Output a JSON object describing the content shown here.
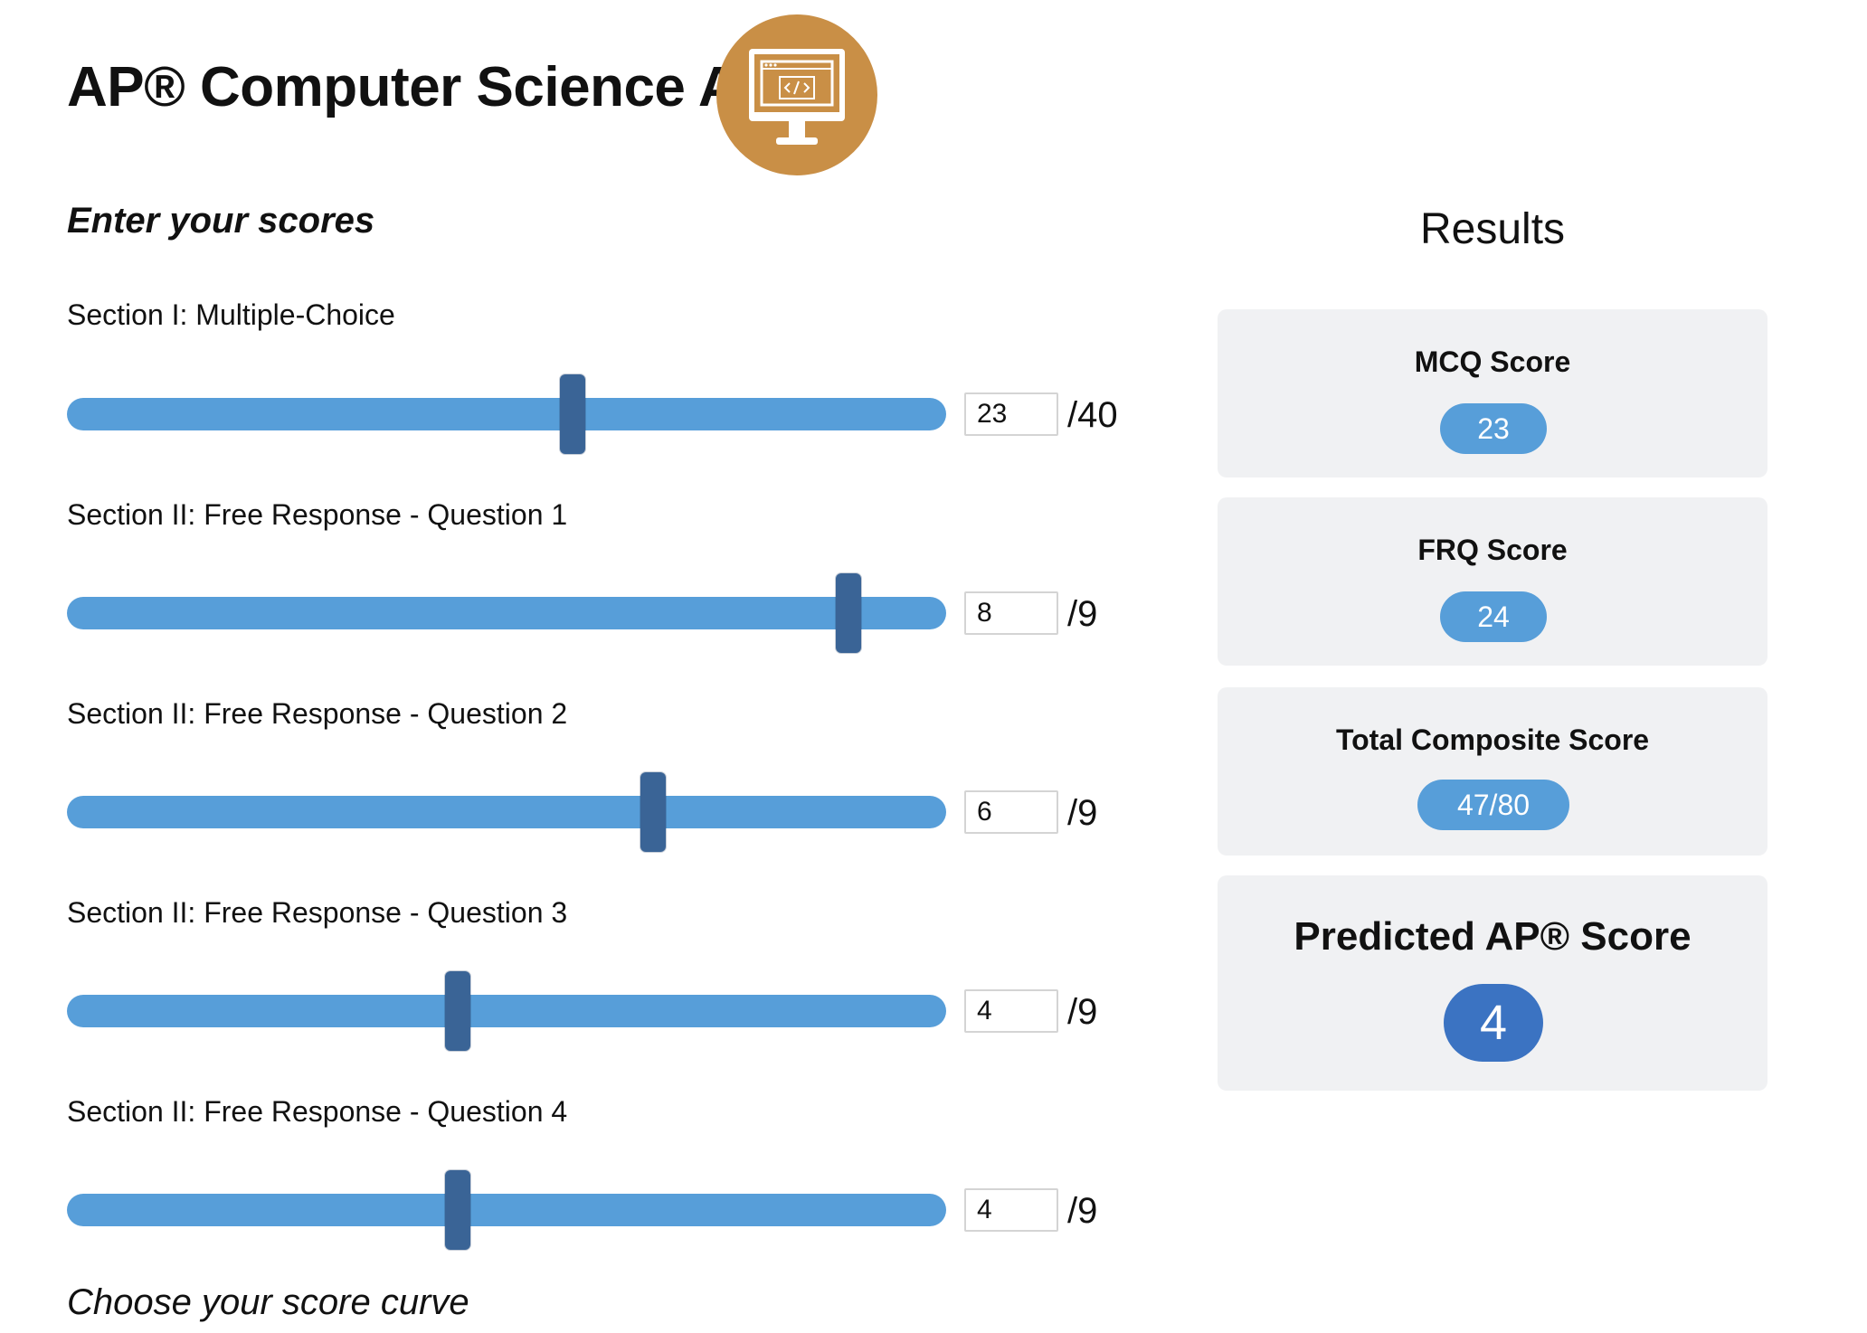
{
  "header": {
    "title": "AP® Computer Science A",
    "logo_icon": "computer-monitor-code-icon",
    "logo_color": "#c98f46"
  },
  "inputs": {
    "heading": "Enter your scores",
    "sections": [
      {
        "label": "Section I: Multiple-Choice",
        "value": "23",
        "max_label": "/40",
        "fraction": 0.575
      },
      {
        "label": "Section II: Free Response - Question 1",
        "value": "8",
        "max_label": "/9",
        "fraction": 0.889
      },
      {
        "label": "Section II: Free Response - Question 2",
        "value": "6",
        "max_label": "/9",
        "fraction": 0.667
      },
      {
        "label": "Section II: Free Response - Question 3",
        "value": "4",
        "max_label": "/9",
        "fraction": 0.444
      },
      {
        "label": "Section II: Free Response - Question 4",
        "value": "4",
        "max_label": "/9",
        "fraction": 0.444
      }
    ],
    "curve_heading": "Choose your score curve"
  },
  "results": {
    "heading": "Results",
    "mcq": {
      "title": "MCQ Score",
      "value": "23"
    },
    "frq": {
      "title": "FRQ Score",
      "value": "24"
    },
    "composite": {
      "title": "Total Composite Score",
      "value": "47/80"
    },
    "predicted": {
      "title": "Predicted AP® Score",
      "value": "4"
    }
  },
  "colors": {
    "slider_track": "#579ed9",
    "slider_thumb": "#3a6496",
    "pill": "#579ed9",
    "predicted_badge": "#3b73c2",
    "card_background": "#f0f1f3"
  }
}
